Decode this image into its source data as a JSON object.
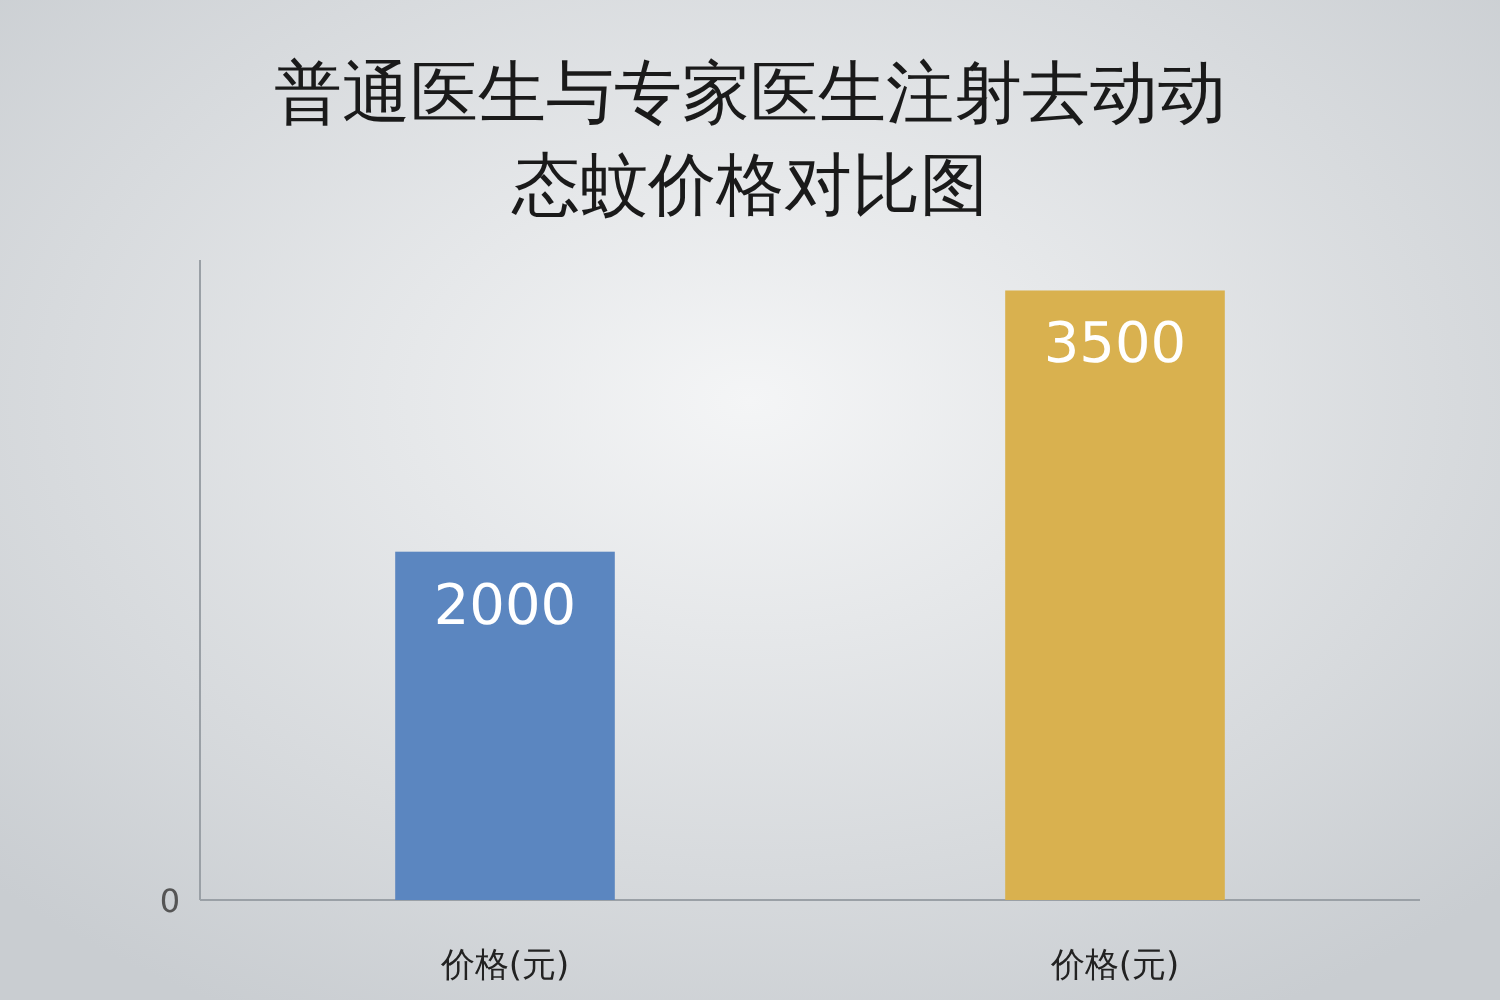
{
  "chart_data": {
    "type": "bar",
    "title": "普通医生与专家医生注射去动动态蚊价格对比图",
    "categories": [
      "价格(元)",
      "价格(元)"
    ],
    "values": [
      2000,
      3500
    ],
    "colors": [
      "#5b86c0",
      "#d9b14f"
    ],
    "data_labels": true,
    "annotations": [
      "0"
    ]
  }
}
